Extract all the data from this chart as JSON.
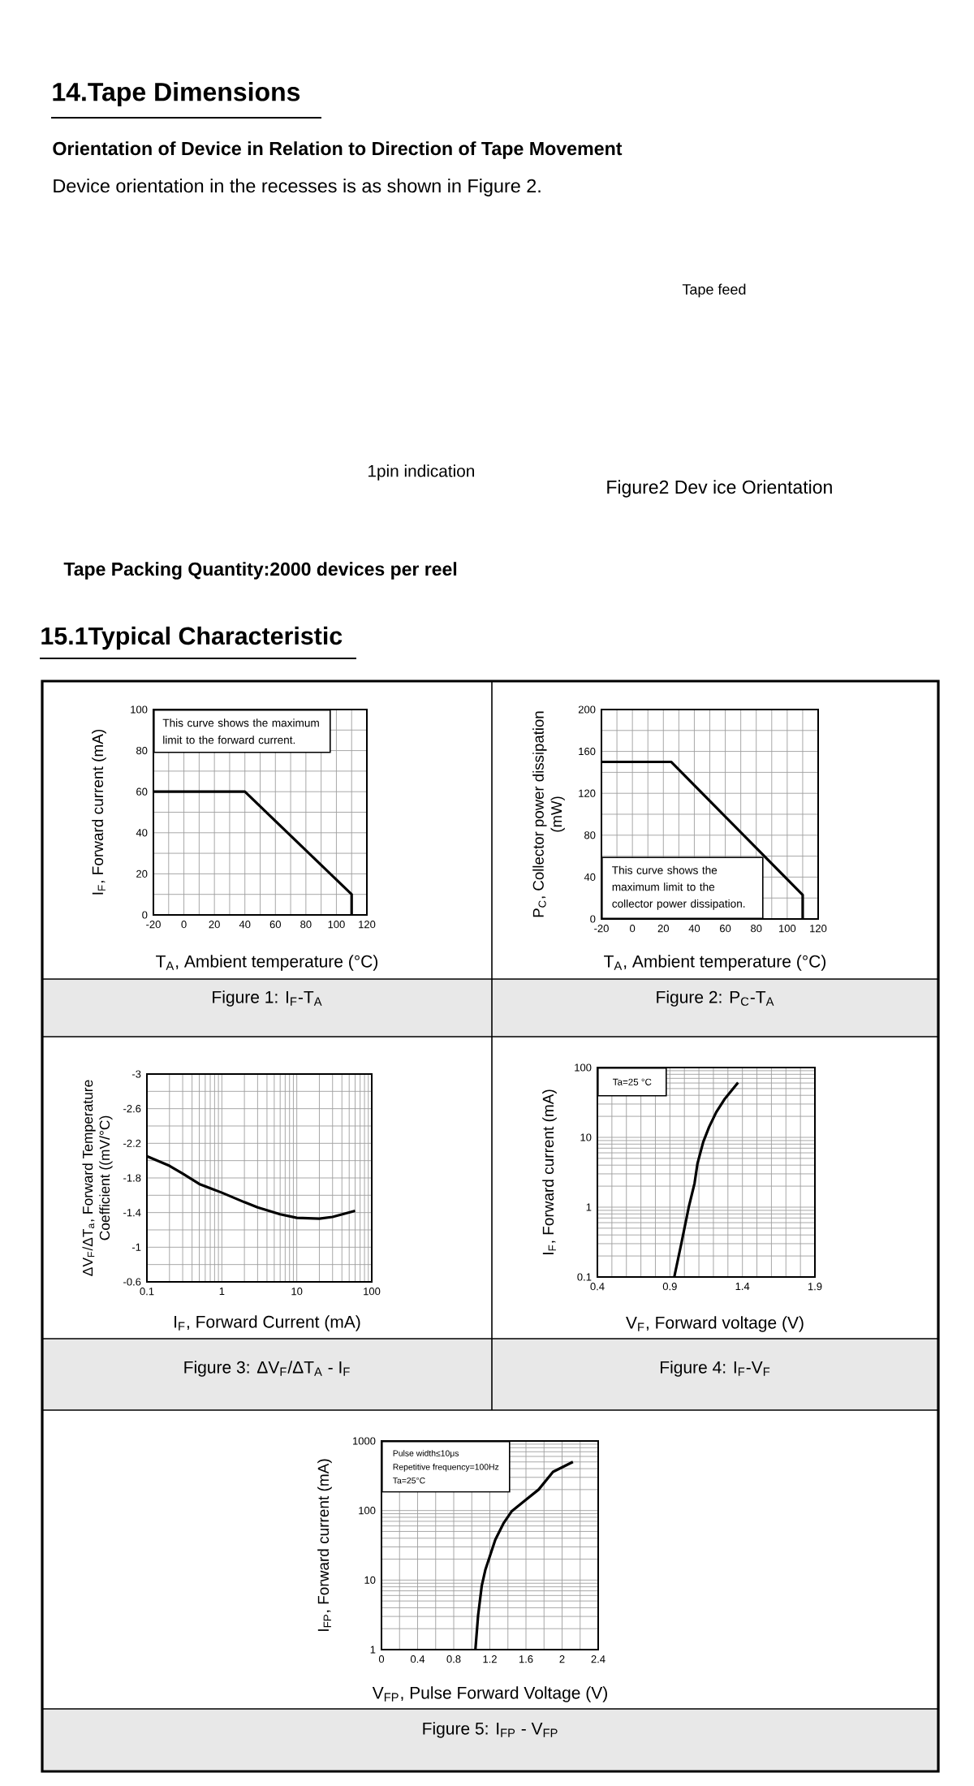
{
  "chart_data": [
    {
      "type": "other",
      "title": "14.Tape Dimensions",
      "subtitle": "Orientation of Device in Relation to Direction of Tape Movement",
      "annotations": [
        "Device orientation in the recesses is as shown in Figure 2.",
        "Tape feed",
        "1pin indication",
        "Figure2 Dev ice Orientation",
        "Tape Packing Quantity:2000 devices per reel",
        "15.1Typical Characteristic"
      ]
    },
    {
      "type": "line",
      "title": "Figure 1: I$_{F}$-T$_{A}$",
      "xlabel": "T$_{A}$, Ambient temperature (°C)",
      "ylabel": "I$_{F}$, Forward current (mA)",
      "annotations": [
        "This curve shows the maximum limit to the forward current."
      ],
      "x": [
        -20,
        40,
        110,
        110
      ],
      "values": [
        60,
        60,
        10,
        0
      ],
      "color": "#000000",
      "xlim": [
        -20,
        120
      ],
      "ylim": [
        0,
        100
      ],
      "xticks": [
        -20,
        {
          "value": -10,
          "label": null
        },
        0,
        {
          "value": 10,
          "label": null
        },
        20,
        {
          "value": 30,
          "label": null
        },
        40,
        {
          "value": 50,
          "label": null
        },
        60,
        {
          "value": 70,
          "label": null
        },
        80,
        {
          "value": 90,
          "label": null
        },
        100,
        {
          "value": 110,
          "label": null
        },
        120
      ],
      "yticks": [
        0,
        {
          "value": 10,
          "label": null
        },
        20,
        {
          "value": 30,
          "label": null
        },
        40,
        {
          "value": 50,
          "label": null
        },
        60,
        {
          "value": 70,
          "label": null
        },
        80,
        {
          "value": 90,
          "label": null
        },
        100
      ],
      "grid": true
    },
    {
      "type": "line",
      "title": "Figure 2: P$_{C}$-T$_{A}$",
      "xlabel": "T$_{A}$, Ambient temperature (°C)",
      "ylabel": "P$_{C}$, Collector power dissipation (mW)",
      "annotations": [
        "This curve shows the maximum limit to the collector power dissipation."
      ],
      "x": [
        -20,
        25,
        110,
        110
      ],
      "values": [
        150,
        150,
        23,
        0
      ],
      "color": "#000000",
      "xlim": [
        -20,
        120
      ],
      "ylim": [
        0,
        200
      ],
      "xticks": [
        -20,
        {
          "value": -10,
          "label": null
        },
        0,
        {
          "value": 10,
          "label": null
        },
        20,
        {
          "value": 30,
          "label": null
        },
        40,
        {
          "value": 50,
          "label": null
        },
        60,
        {
          "value": 70,
          "label": null
        },
        80,
        {
          "value": 90,
          "label": null
        },
        100,
        {
          "value": 110,
          "label": null
        },
        120
      ],
      "yticks": [
        0,
        {
          "value": 20,
          "label": null
        },
        40,
        {
          "value": 60,
          "label": null
        },
        80,
        {
          "value": 100,
          "label": null
        },
        120,
        {
          "value": 140,
          "label": null
        },
        160,
        {
          "value": 180,
          "label": null
        },
        200
      ],
      "grid": true
    },
    {
      "type": "line",
      "title": "Figure 3: ΔV$_{F}$/ΔT$_{A}$ - I$_{F}$",
      "xlabel": "I$_{F}$, Forward Current (mA)",
      "ylabel": "ΔV$_{F}$/ΔT$_{a}$, Forward Temperature Coefficient ((mV/°C)",
      "x": [
        0.1,
        0.2,
        0.3,
        0.5,
        1,
        2,
        3,
        6,
        10,
        20,
        30,
        60
      ],
      "values": [
        -2.05,
        -1.94,
        -1.85,
        -1.73,
        -1.63,
        -1.52,
        -1.46,
        -1.38,
        -1.34,
        -1.33,
        -1.35,
        -1.42
      ],
      "color": "#000000",
      "log": "x",
      "xlim": [
        0.1,
        100
      ],
      "ylim": [
        -0.6,
        -3
      ],
      "xticks": [
        0.1,
        {
          "value": 0.2,
          "label": null
        },
        {
          "value": 0.3,
          "label": null
        },
        {
          "value": 0.4,
          "label": null
        },
        {
          "value": 0.5,
          "label": null
        },
        {
          "value": 0.6,
          "label": null
        },
        {
          "value": 0.7,
          "label": null
        },
        {
          "value": 0.8,
          "label": null
        },
        {
          "value": 0.9,
          "label": null
        },
        1,
        {
          "value": 2,
          "label": null
        },
        {
          "value": 3,
          "label": null
        },
        {
          "value": 4,
          "label": null
        },
        {
          "value": 5,
          "label": null
        },
        {
          "value": 6,
          "label": null
        },
        {
          "value": 7,
          "label": null
        },
        {
          "value": 8,
          "label": null
        },
        {
          "value": 9,
          "label": null
        },
        10,
        {
          "value": 20,
          "label": null
        },
        {
          "value": 30,
          "label": null
        },
        {
          "value": 40,
          "label": null
        },
        {
          "value": 50,
          "label": null
        },
        {
          "value": 60,
          "label": null
        },
        {
          "value": 70,
          "label": null
        },
        {
          "value": 80,
          "label": null
        },
        {
          "value": 90,
          "label": null
        },
        100
      ],
      "yticks": [
        -3,
        {
          "value": -2.8,
          "label": null
        },
        -2.6,
        {
          "value": -2.4,
          "label": null
        },
        -2.2,
        {
          "value": -2,
          "label": null
        },
        -1.8,
        {
          "value": -1.6,
          "label": null
        },
        -1.4,
        {
          "value": -1.2,
          "label": null
        },
        -1,
        {
          "value": -0.8,
          "label": null
        },
        -0.6
      ],
      "grid": true
    },
    {
      "type": "line",
      "title": "Figure 4: I$_{F}$-V$_{F}$",
      "xlabel": "V$_{F}$, Forward voltage (V)",
      "ylabel": "I$_{F}$, Forward current (mA)",
      "annotations": [
        "Ta=25 °C"
      ],
      "x": [
        0.93,
        0.98,
        1.03,
        1.07,
        1.09,
        1.13,
        1.17,
        1.22,
        1.28,
        1.37
      ],
      "values": [
        0.1,
        0.31,
        1,
        2.2,
        4.2,
        8.6,
        14,
        23,
        36,
        61
      ],
      "color": "#000000",
      "log": true,
      "xlim": [
        0.4,
        1.9
      ],
      "ylim": [
        0.1,
        100
      ],
      "xticks": [
        0.4,
        {
          "value": 0.5,
          "label": null
        },
        {
          "value": 0.6,
          "label": null
        },
        {
          "value": 0.7,
          "label": null
        },
        {
          "value": 0.8,
          "label": null
        },
        0.9,
        {
          "value": 1,
          "label": null
        },
        {
          "value": 1.1,
          "label": null
        },
        {
          "value": 1.2,
          "label": null
        },
        {
          "value": 1.3,
          "label": null
        },
        1.4,
        {
          "value": 1.5,
          "label": null
        },
        {
          "value": 1.6,
          "label": null
        },
        {
          "value": 1.7,
          "label": null
        },
        {
          "value": 1.8,
          "label": null
        },
        1.9
      ],
      "yticks": [
        0.1,
        {
          "value": 0.2,
          "label": null
        },
        {
          "value": 0.3,
          "label": null
        },
        {
          "value": 0.4,
          "label": null
        },
        {
          "value": 0.5,
          "label": null
        },
        {
          "value": 0.6,
          "label": null
        },
        {
          "value": 0.7,
          "label": null
        },
        {
          "value": 0.8,
          "label": null
        },
        {
          "value": 0.9,
          "label": null
        },
        1,
        {
          "value": 2,
          "label": null
        },
        {
          "value": 3,
          "label": null
        },
        {
          "value": 4,
          "label": null
        },
        {
          "value": 5,
          "label": null
        },
        {
          "value": 6,
          "label": null
        },
        {
          "value": 7,
          "label": null
        },
        {
          "value": 8,
          "label": null
        },
        {
          "value": 9,
          "label": null
        },
        10,
        {
          "value": 20,
          "label": null
        },
        {
          "value": 30,
          "label": null
        },
        {
          "value": 40,
          "label": null
        },
        {
          "value": 50,
          "label": null
        },
        {
          "value": 60,
          "label": null
        },
        {
          "value": 70,
          "label": null
        },
        {
          "value": 80,
          "label": null
        },
        {
          "value": 90,
          "label": null
        },
        100
      ],
      "grid": true
    },
    {
      "type": "line",
      "title": "Figure 5: I$_{FP}$ - V$_{FP}$",
      "xlabel": "V$_{FP}$, Pulse Forward Voltage (V)",
      "ylabel": "I$_{FP}$, Forward current (mA)",
      "annotations": [
        "Pulse width≤10μs",
        "Repetitive frequency=100Hz",
        "Ta=25°C"
      ],
      "x": [
        1.04,
        1.07,
        1.11,
        1.15,
        1.2,
        1.26,
        1.35,
        1.44,
        1.59,
        1.74,
        1.9,
        2.12
      ],
      "values": [
        1,
        3.1,
        8.2,
        14,
        22,
        38,
        65,
        97,
        140,
        200,
        360,
        500
      ],
      "color": "#000000",
      "log": true,
      "xlim": [
        0,
        2.4
      ],
      "ylim": [
        1,
        1000
      ],
      "xticks": [
        0,
        {
          "value": 0.2,
          "label": null
        },
        0.4,
        {
          "value": 0.6,
          "label": null
        },
        0.8,
        {
          "value": 1,
          "label": null
        },
        1.2,
        {
          "value": 1.4,
          "label": null
        },
        1.6,
        {
          "value": 1.8,
          "label": null
        },
        2,
        {
          "value": 2.2,
          "label": null
        },
        2.4
      ],
      "yticks": [
        1,
        {
          "value": 2,
          "label": null
        },
        {
          "value": 3,
          "label": null
        },
        {
          "value": 4,
          "label": null
        },
        {
          "value": 5,
          "label": null
        },
        {
          "value": 6,
          "label": null
        },
        {
          "value": 7,
          "label": null
        },
        {
          "value": 8,
          "label": null
        },
        {
          "value": 9,
          "label": null
        },
        10,
        {
          "value": 20,
          "label": null
        },
        {
          "value": 30,
          "label": null
        },
        {
          "value": 40,
          "label": null
        },
        {
          "value": 50,
          "label": null
        },
        {
          "value": 60,
          "label": null
        },
        {
          "value": 70,
          "label": null
        },
        {
          "value": 80,
          "label": null
        },
        {
          "value": 90,
          "label": null
        },
        100,
        {
          "value": 200,
          "label": null
        },
        {
          "value": 300,
          "label": null
        },
        {
          "value": 400,
          "label": null
        },
        {
          "value": 500,
          "label": null
        },
        {
          "value": 600,
          "label": null
        },
        {
          "value": 700,
          "label": null
        },
        {
          "value": 800,
          "label": null
        },
        {
          "value": 900,
          "label": null
        },
        1000
      ],
      "grid": true
    }
  ]
}
